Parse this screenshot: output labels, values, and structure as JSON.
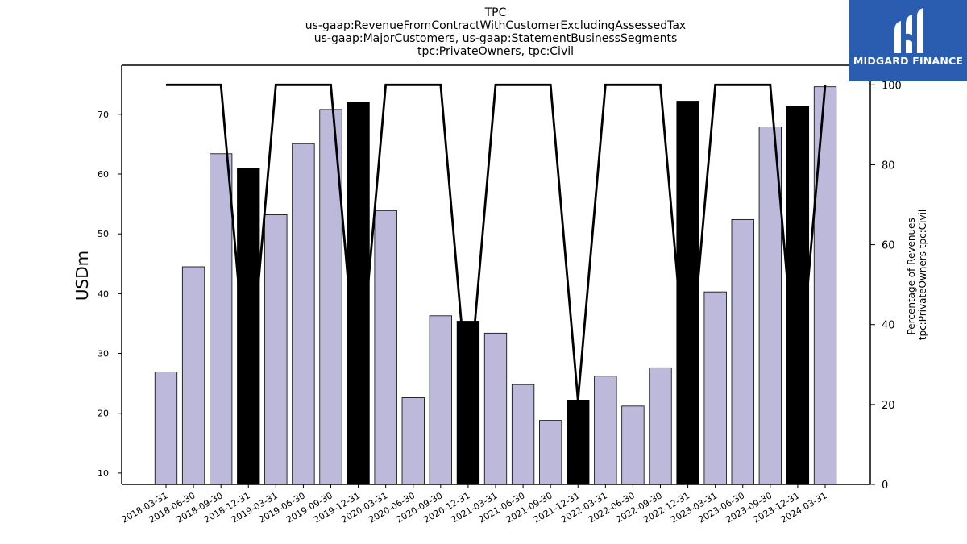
{
  "chart_data": {
    "type": "bar",
    "title_lines": [
      "TPC",
      "us-gaap:RevenueFromContractWithCustomerExcludingAssessedTax",
      "us-gaap:MajorCustomers, us-gaap:StatementBusinessSegments",
      "tpc:PrivateOwners, tpc:Civil"
    ],
    "ylabel": "USDm",
    "y2label_lines": [
      "Percentage of Revenues",
      "tpc:PrivateOwners tpc:Civil"
    ],
    "categories": [
      "2018-03-31",
      "2018-06-30",
      "2018-09-30",
      "2018-12-31",
      "2019-03-31",
      "2019-06-30",
      "2019-09-30",
      "2019-12-31",
      "2020-03-31",
      "2020-06-30",
      "2020-09-30",
      "2020-12-31",
      "2021-03-31",
      "2021-06-30",
      "2021-09-30",
      "2021-12-31",
      "2022-03-31",
      "2022-06-30",
      "2022-09-30",
      "2022-12-31",
      "2023-03-31",
      "2023-06-30",
      "2023-09-30",
      "2023-12-31",
      "2024-03-31"
    ],
    "series": [
      {
        "type": "bar",
        "values": [
          26.9,
          44.5,
          63.4,
          60.9,
          53.2,
          65.1,
          70.8,
          72.0,
          53.9,
          22.6,
          36.3,
          35.4,
          33.4,
          24.8,
          18.8,
          22.2,
          26.2,
          21.2,
          27.6,
          72.2,
          40.3,
          52.4,
          67.9,
          71.3,
          74.6
        ],
        "colors": [
          "#bcb9da",
          "#bcb9da",
          "#bcb9da",
          "#000000",
          "#bcb9da",
          "#bcb9da",
          "#bcb9da",
          "#000000",
          "#bcb9da",
          "#bcb9da",
          "#bcb9da",
          "#000000",
          "#bcb9da",
          "#bcb9da",
          "#bcb9da",
          "#000000",
          "#bcb9da",
          "#bcb9da",
          "#bcb9da",
          "#000000",
          "#bcb9da",
          "#bcb9da",
          "#bcb9da",
          "#000000",
          "#bcb9da"
        ]
      },
      {
        "type": "line",
        "axis": "right",
        "color": "#000000",
        "values": [
          100,
          100,
          100,
          22,
          100,
          100,
          100,
          22,
          100,
          100,
          100,
          21,
          100,
          100,
          100,
          21,
          100,
          100,
          100,
          22,
          100,
          100,
          100,
          21,
          100
        ]
      }
    ],
    "ylim": [
      8.1,
      78.2
    ],
    "yticks": [
      10,
      20,
      30,
      40,
      50,
      60,
      70
    ],
    "y2lim": [
      0,
      104.9
    ],
    "y2ticks": [
      0,
      20,
      40,
      60,
      80,
      100
    ],
    "grid": false
  },
  "logo": {
    "text": "MIDGARD FINANCE",
    "bg_color": "#2a5caf"
  }
}
